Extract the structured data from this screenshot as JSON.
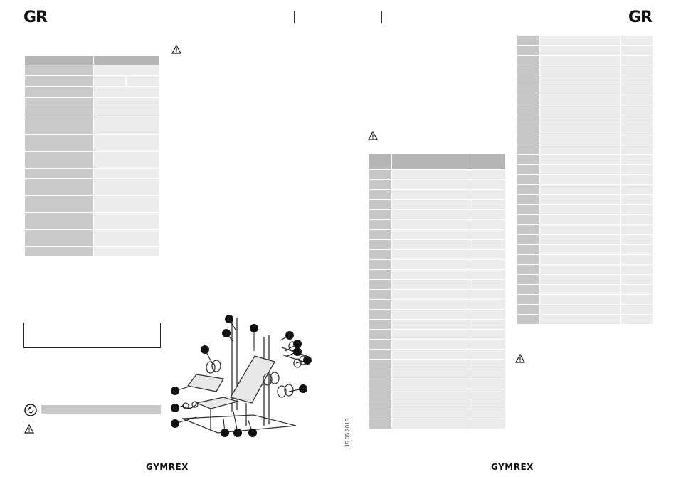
{
  "header": {
    "logo_left": "GR",
    "logo_right": "GR"
  },
  "footer": {
    "brand_left": "GYMREX",
    "brand_right": "GYMREX",
    "date": "15.05.2018"
  },
  "spec_table": {
    "rows": 17
  },
  "parts_table_left": {
    "rows": 28
  },
  "parts_table_right": {
    "rows": 29
  },
  "diagram": {
    "callouts": [
      "",
      "",
      "",
      "",
      "",
      "",
      "",
      "",
      "",
      "",
      "",
      "",
      "",
      "",
      ""
    ]
  },
  "icons": [
    "warning-icon",
    "recycle-icon"
  ]
}
